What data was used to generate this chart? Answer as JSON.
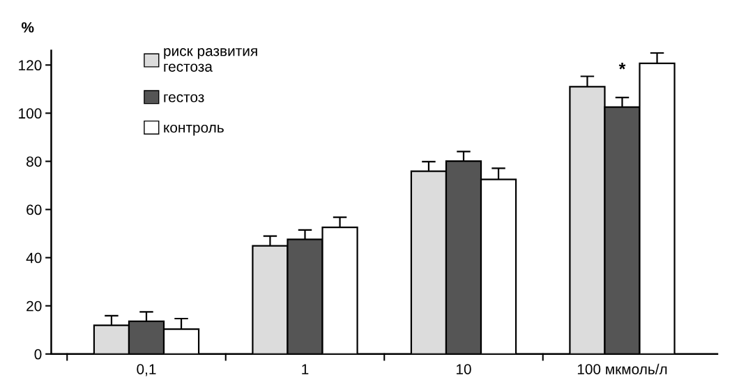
{
  "chart_data": {
    "type": "bar",
    "ylabel": "%",
    "categories": [
      "0,1",
      "1",
      "10",
      "100 мкмоль/л"
    ],
    "series": [
      {
        "name": "риск развития\nгестоза",
        "color": "#dcdcdc",
        "values": [
          11.9,
          44.9,
          75.9,
          111.0
        ],
        "errors": [
          4.0,
          4.1,
          4.0,
          4.3
        ]
      },
      {
        "name": "гестоз",
        "color": "#555555",
        "values": [
          13.6,
          47.6,
          80.1,
          102.5
        ],
        "errors": [
          3.9,
          3.9,
          4.0,
          4.0
        ]
      },
      {
        "name": "контроль",
        "color": "#ffffff",
        "values": [
          10.3,
          52.6,
          72.5,
          120.7
        ],
        "errors": [
          4.4,
          4.2,
          4.6,
          4.3
        ]
      }
    ],
    "ylim": [
      0,
      126
    ],
    "yticks": [
      0,
      20,
      40,
      60,
      80,
      100,
      120
    ],
    "annotations": [
      "*"
    ],
    "grid": false,
    "legend": "top left"
  }
}
